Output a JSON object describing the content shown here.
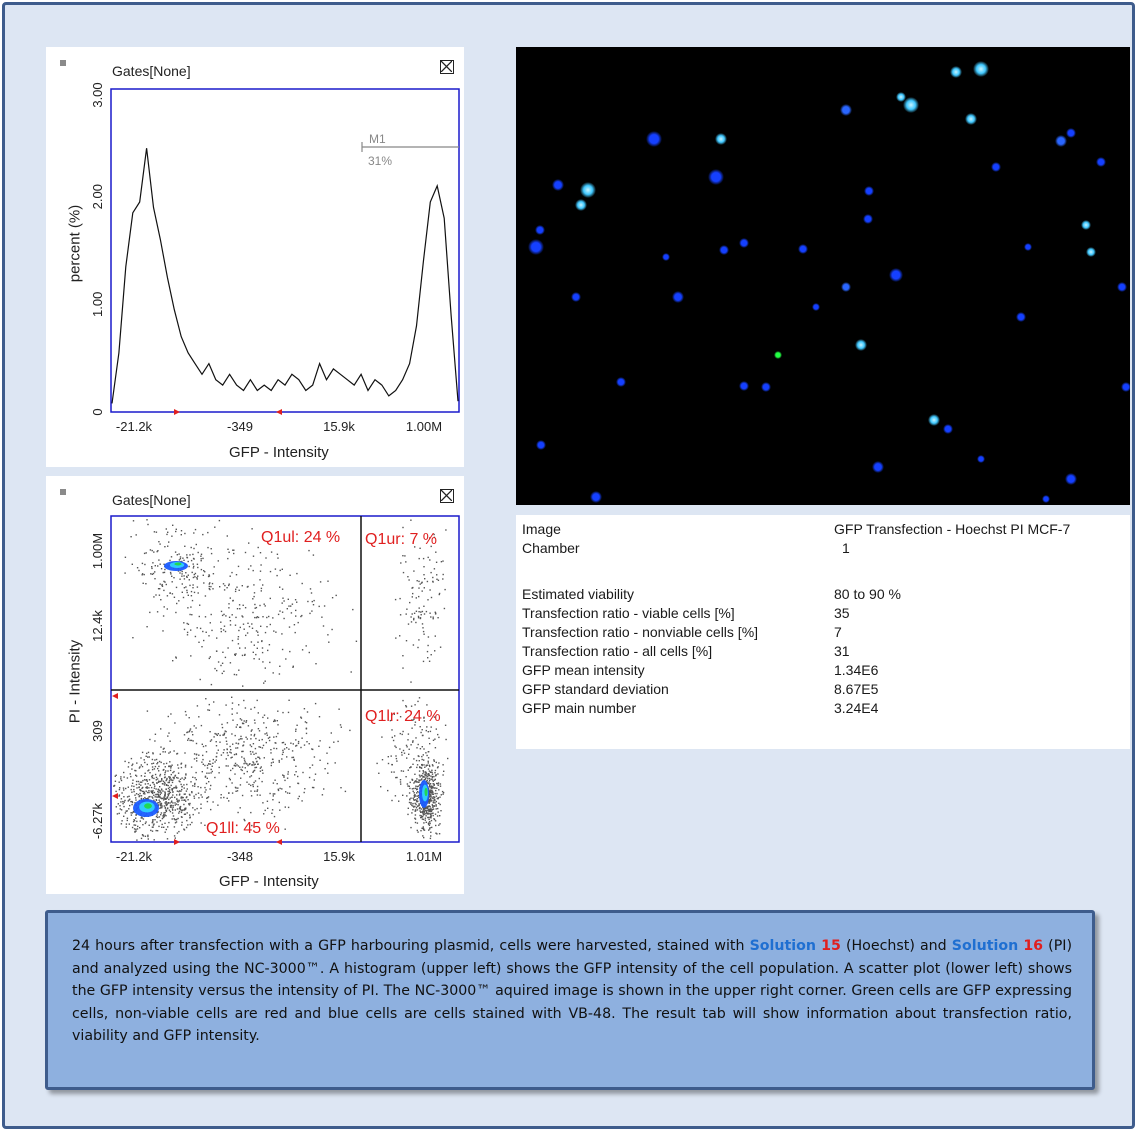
{
  "histogram": {
    "gates_label": "Gates[None]",
    "ylabel": "percent (%)",
    "xlabel": "GFP - Intensity",
    "yticks": [
      "0",
      "1.00",
      "2.00",
      "3.00"
    ],
    "xticks": [
      "-21.2k",
      "-349",
      "15.9k",
      "1.00M"
    ],
    "marker_label": "M1",
    "marker_value": "31%",
    "chart_data": {
      "type": "line",
      "xlabel": "GFP - Intensity",
      "ylabel": "percent (%)",
      "ylim": [
        0,
        3.0
      ],
      "x_tick_labels": [
        "-21.2k",
        "-349",
        "15.9k",
        "1.00M"
      ],
      "x_index": [
        0,
        2,
        4,
        6,
        8,
        10,
        12,
        14,
        16,
        18,
        20,
        22,
        24,
        26,
        28,
        30,
        32,
        34,
        36,
        38,
        40,
        42,
        44,
        46,
        48,
        50,
        52,
        54,
        56,
        58,
        60,
        62,
        64,
        66,
        68,
        70,
        72,
        74,
        76,
        78,
        80,
        82,
        84,
        86,
        88,
        90,
        92,
        94,
        96,
        98,
        100
      ],
      "values": [
        0.08,
        0.55,
        1.35,
        1.85,
        1.95,
        2.45,
        1.9,
        1.6,
        1.25,
        0.95,
        0.7,
        0.55,
        0.45,
        0.35,
        0.45,
        0.3,
        0.25,
        0.35,
        0.25,
        0.2,
        0.3,
        0.2,
        0.25,
        0.2,
        0.3,
        0.25,
        0.35,
        0.3,
        0.2,
        0.25,
        0.45,
        0.3,
        0.4,
        0.35,
        0.3,
        0.25,
        0.35,
        0.2,
        0.3,
        0.25,
        0.15,
        0.2,
        0.3,
        0.45,
        0.8,
        1.4,
        1.95,
        2.1,
        1.8,
        0.9,
        0.1
      ]
    }
  },
  "scatter": {
    "gates_label": "Gates[None]",
    "ylabel": "PI - Intensity",
    "xlabel": "GFP - Intensity",
    "yticks": [
      "-6.27k",
      "309",
      "12.4k",
      "1.00M"
    ],
    "xticks": [
      "-21.2k",
      "-348",
      "15.9k",
      "1.01M"
    ],
    "quadrants": {
      "ul": "Q1ul: 24 %",
      "ur": "Q1ur: 7 %",
      "lr": "Q1lr: 24 %",
      "ll": "Q1ll: 45 %"
    },
    "chart_data": {
      "type": "scatter",
      "xlabel": "GFP - Intensity",
      "ylabel": "PI - Intensity",
      "quadrant_percentages": {
        "ul": 24,
        "ur": 7,
        "lr": 24,
        "ll": 45
      }
    }
  },
  "micro_image": {
    "dot_colors": [
      "#1540ff",
      "#2a66ff",
      "#40c8ff",
      "#22ff44"
    ]
  },
  "results": {
    "rows": [
      {
        "label": "Image",
        "value": "GFP Transfection - Hoechst PI MCF-7"
      },
      {
        "label": "Chamber",
        "value": "1"
      },
      {
        "label": "Estimated viability",
        "value": "80 to 90 %"
      },
      {
        "label": "Transfection ratio - viable cells [%]",
        "value": "35"
      },
      {
        "label": "Transfection ratio - nonviable cells [%]",
        "value": "7"
      },
      {
        "label": "Transfection ratio - all cells [%]",
        "value": "31"
      },
      {
        "label": "GFP mean intensity",
        "value": "1.34E6"
      },
      {
        "label": "GFP standard deviation",
        "value": "8.67E5"
      },
      {
        "label": "GFP main number",
        "value": "3.24E4"
      }
    ]
  },
  "caption": {
    "part1": "24 hours after transfection with a GFP harbouring plasmid, cells were harvested, stained with ",
    "solution_word_1": "Solution",
    "solution_num_1": "15",
    "part2": " (Hoechst) and ",
    "solution_word_2": "Solution",
    "solution_num_2": "16",
    "part3": " (PI) and analyzed using the NC-3000™. A histogram (upper left) shows the GFP intensity of the cell population. A scatter plot (lower left) shows the GFP intensity versus the intensity of PI. The  NC-3000™ aquired image is shown in the upper right corner. Green cells are GFP expressing cells, non-viable cells are red and blue cells are cells stained with VB-48. The result tab will show information about transfection ratio, viability and GFP intensity."
  },
  "colors": {
    "frame_bg": "#dde6f3",
    "frame_border": "#3e5c8c",
    "plot_border": "#1a1acc",
    "caption_bg": "#8eb0df",
    "quadrant_text": "#e01f1f",
    "solution_word": "#1f6fd1",
    "solution_num": "#e01f1f"
  }
}
